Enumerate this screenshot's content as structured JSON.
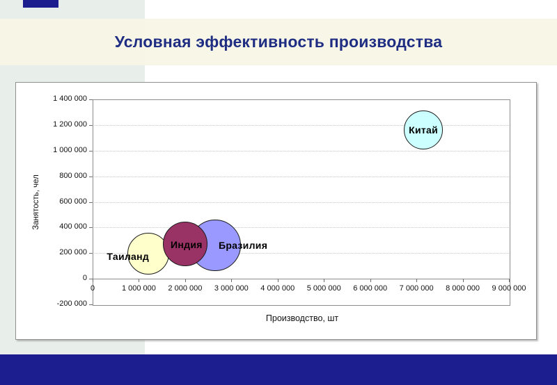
{
  "slide": {
    "title": "Условная эффективность производства"
  },
  "theme": {
    "title_color": "#1f2e83",
    "footer_color": "#1c1e8f",
    "column_bg": "#e8efeb",
    "band_bg": "rgba(247,246,229,0.93)"
  },
  "chart_data": {
    "type": "scatter",
    "subtype": "bubble",
    "title": "",
    "xlabel": "Производство, шт",
    "ylabel": "Занятость, чел",
    "xlim": [
      0,
      9000000
    ],
    "ylim": [
      -200000,
      1400000
    ],
    "grid": "horizontal-dotted",
    "legend": "none",
    "x_ticks": [
      0,
      1000000,
      2000000,
      3000000,
      4000000,
      5000000,
      6000000,
      7000000,
      8000000,
      9000000
    ],
    "x_tick_labels": [
      "0",
      "1 000 000",
      "2 000 000",
      "3 000 000",
      "4 000 000",
      "5 000 000",
      "6 000 000",
      "7 000 000",
      "8 000 000",
      "9 000 000"
    ],
    "y_ticks": [
      -200000,
      0,
      200000,
      400000,
      600000,
      800000,
      1000000,
      1200000,
      1400000
    ],
    "y_tick_labels": [
      "-200 000",
      "0",
      "200 000",
      "400 000",
      "600 000",
      "800 000",
      "1 000 000",
      "1 200 000",
      "1 400 000"
    ],
    "series": [
      {
        "id": "thailand",
        "name": "Таиланд",
        "x": 1200000,
        "y": 195000,
        "radius_px": 30,
        "color": "#ffffcc",
        "z": 2,
        "label_dx": -29,
        "label_dy": 4
      },
      {
        "id": "india",
        "name": "Индия",
        "x": 2000000,
        "y": 270000,
        "radius_px": 32,
        "color": "#993366",
        "z": 3,
        "label_dx": 2,
        "label_dy": 1
      },
      {
        "id": "brazil",
        "name": "Бразилия",
        "x": 2650000,
        "y": 260000,
        "radius_px": 37,
        "color": "#9999ff",
        "z": 1,
        "label_dx": 40,
        "label_dy": 0
      },
      {
        "id": "china",
        "name": "Китай",
        "x": 7150000,
        "y": 1160000,
        "radius_px": 28,
        "color": "#ccffff",
        "z": 1,
        "label_dx": 0,
        "label_dy": 0
      }
    ]
  }
}
